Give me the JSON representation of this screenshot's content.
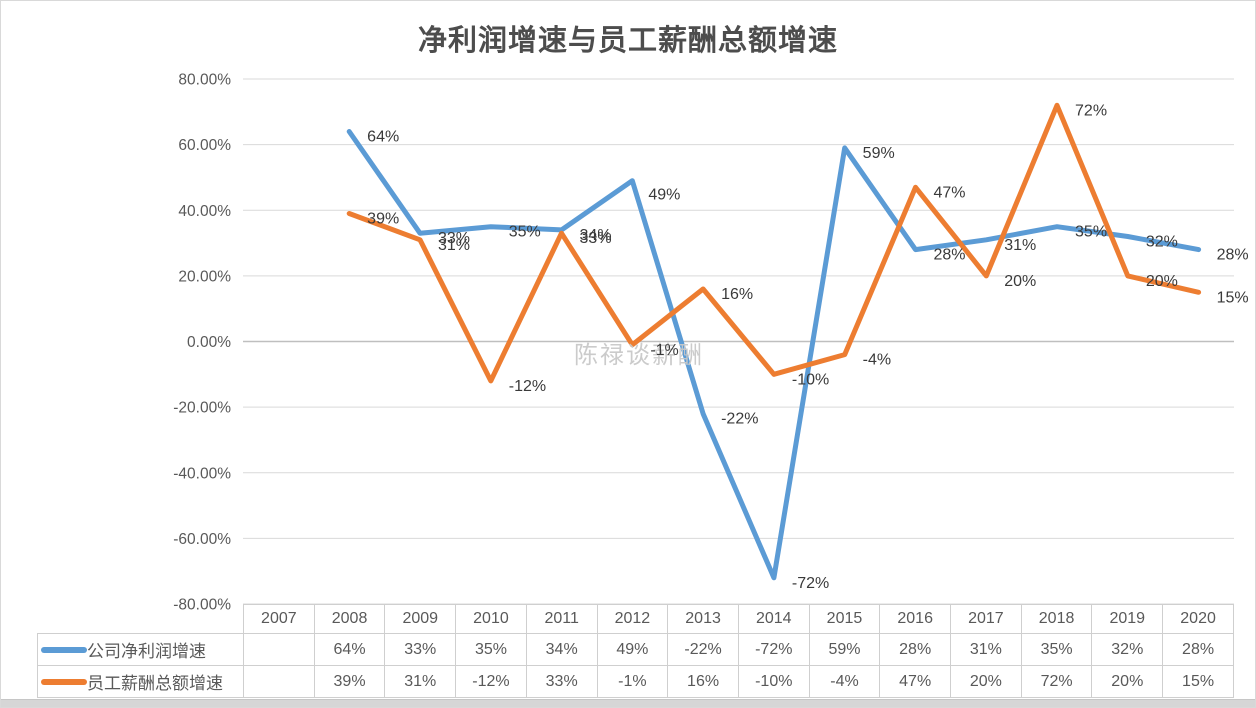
{
  "page": {
    "title": "净利润增速与员工薪酬总额增速",
    "watermark": "陈禄谈薪酬"
  },
  "chart_data": {
    "type": "line",
    "title": "净利润增速与员工薪酬总额增速",
    "categories": [
      "2007",
      "2008",
      "2009",
      "2010",
      "2011",
      "2012",
      "2013",
      "2014",
      "2015",
      "2016",
      "2017",
      "2018",
      "2019",
      "2020"
    ],
    "series": [
      {
        "name": "公司净利润增速",
        "color": "#5B9BD5",
        "values": [
          null,
          64,
          33,
          35,
          34,
          49,
          -22,
          -72,
          59,
          28,
          31,
          35,
          32,
          28
        ],
        "label_offsets": {
          "5": [
            16,
            14
          ]
        }
      },
      {
        "name": "员工薪酬总额增速",
        "color": "#ED7D31",
        "values": [
          null,
          39,
          31,
          -12,
          33,
          -1,
          16,
          -10,
          -4,
          47,
          20,
          72,
          20,
          15
        ],
        "label_offsets": {}
      }
    ],
    "ylim": [
      -80,
      80
    ],
    "y_tick_step": 20,
    "y_ticks": [
      {
        "value": 80,
        "label": "80.00%"
      },
      {
        "value": 60,
        "label": "60.00%"
      },
      {
        "value": 40,
        "label": "40.00%"
      },
      {
        "value": 20,
        "label": "20.00%"
      },
      {
        "value": 0,
        "label": "0.00%"
      },
      {
        "value": -20,
        "label": "-20.00%"
      },
      {
        "value": -40,
        "label": "-40.00%"
      },
      {
        "value": -60,
        "label": "-60.00%"
      },
      {
        "value": -80,
        "label": "-80.00%"
      }
    ],
    "grid": true,
    "data_labels": true,
    "label_suffix": "%",
    "legend_position": "table-left",
    "colors": {
      "gridline": "#d9d9d9",
      "zero_line": "#bfbfbf",
      "axis_text": "#595959",
      "data_label_text": "#3a3a3a",
      "watermark_text": "#c9c9c9",
      "table_border": "#cfcfcf"
    }
  }
}
